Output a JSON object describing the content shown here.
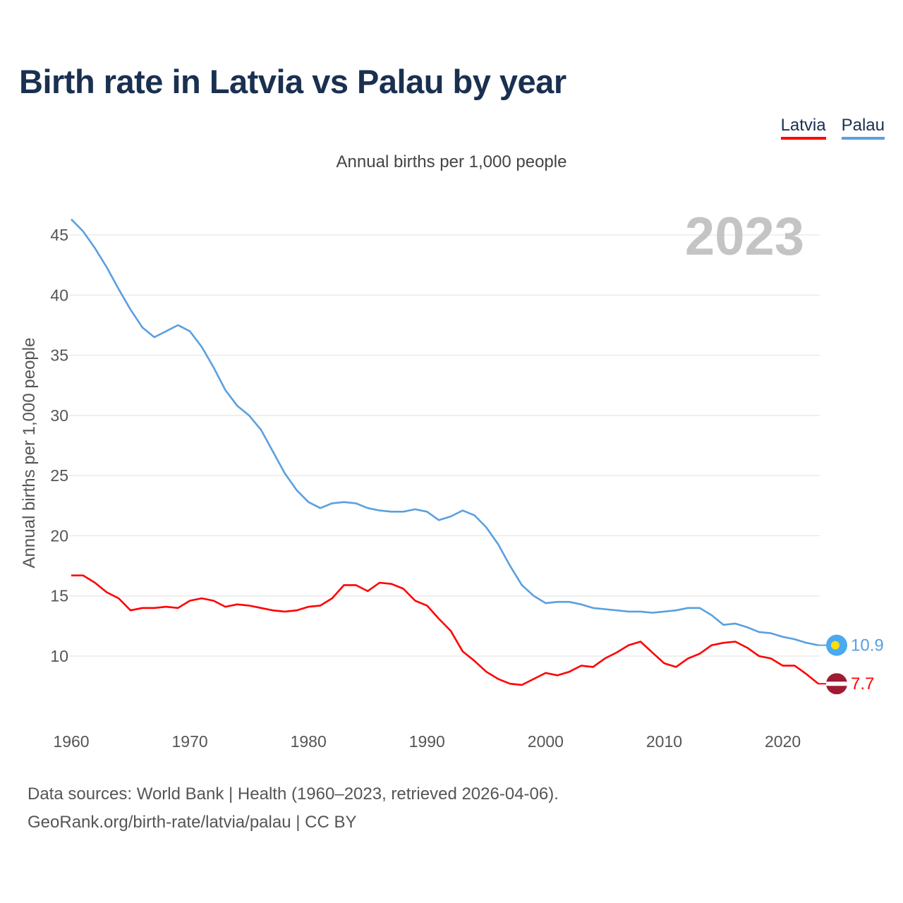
{
  "title": "Birth rate in Latvia vs Palau by year",
  "subtitle": "Annual births per 1,000 people",
  "legend": {
    "latvia": "Latvia",
    "palau": "Palau"
  },
  "source": {
    "line1": "Data sources: World Bank | Health (1960–2023, retrieved 2026-04-06).",
    "line2": "GeoRank.org/birth-rate/latvia/palau | CC BY"
  },
  "colors": {
    "latvia": "#ff0000",
    "palau": "#5a9fe0",
    "title": "#1a3050"
  },
  "chart_data": {
    "type": "line",
    "title": "Birth rate in Latvia vs Palau by year",
    "ylabel": "Annual births per 1,000 people",
    "xlabel": "",
    "year_label": "2023",
    "xlim": [
      1960,
      2023
    ],
    "ylim": [
      5,
      47
    ],
    "yticks": [
      10,
      15,
      20,
      25,
      30,
      35,
      40,
      45
    ],
    "xticks": [
      1960,
      1970,
      1980,
      1990,
      2000,
      2010,
      2020
    ],
    "grid": true,
    "legend_position": "top-right",
    "x_start": 1960,
    "series": [
      {
        "name": "Latvia",
        "color": "#ff0000",
        "end_label": "7.7",
        "values": [
          16.7,
          16.7,
          16.1,
          15.3,
          14.8,
          13.8,
          14.0,
          14.0,
          14.1,
          14.0,
          14.6,
          14.8,
          14.6,
          14.1,
          14.3,
          14.2,
          14.0,
          13.8,
          13.7,
          13.8,
          14.1,
          14.2,
          14.8,
          15.9,
          15.9,
          15.4,
          16.1,
          16.0,
          15.6,
          14.6,
          14.2,
          13.1,
          12.1,
          10.4,
          9.6,
          8.7,
          8.1,
          7.7,
          7.6,
          8.1,
          8.6,
          8.4,
          8.7,
          9.2,
          9.1,
          9.8,
          10.3,
          10.9,
          11.2,
          10.3,
          9.4,
          9.1,
          9.8,
          10.2,
          10.9,
          11.1,
          11.2,
          10.7,
          10.0,
          9.8,
          9.2,
          9.2,
          8.5,
          7.7
        ]
      },
      {
        "name": "Palau",
        "color": "#5a9fe0",
        "end_label": "10.9",
        "values": [
          46.3,
          45.3,
          43.9,
          42.3,
          40.5,
          38.8,
          37.3,
          36.5,
          37.0,
          37.5,
          37.0,
          35.7,
          34.0,
          32.1,
          30.8,
          30.0,
          28.8,
          27.0,
          25.2,
          23.8,
          22.8,
          22.3,
          22.7,
          22.8,
          22.7,
          22.3,
          22.1,
          22.0,
          22.0,
          22.2,
          22.0,
          21.3,
          21.6,
          22.1,
          21.7,
          20.7,
          19.3,
          17.5,
          15.9,
          15.0,
          14.4,
          14.5,
          14.5,
          14.3,
          14.0,
          13.9,
          13.8,
          13.7,
          13.7,
          13.6,
          13.7,
          13.8,
          14.0,
          14.0,
          13.4,
          12.6,
          12.7,
          12.4,
          12.0,
          11.9,
          11.6,
          11.4,
          11.1,
          10.9
        ]
      }
    ]
  }
}
